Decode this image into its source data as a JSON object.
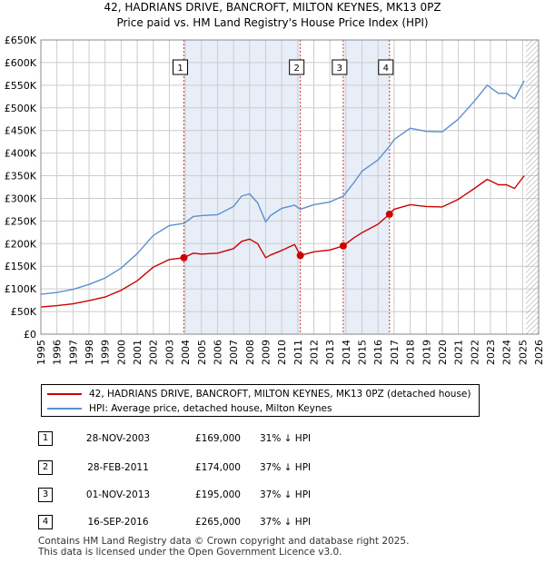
{
  "header": {
    "title": "42, HADRIANS DRIVE, BANCROFT, MILTON KEYNES, MK13 0PZ",
    "subtitle": "Price paid vs. HM Land Registry's House Price Index (HPI)"
  },
  "colors": {
    "red": "#cc0000",
    "blue": "#5b8fd0",
    "shade": "#e8eef8",
    "grid": "#cccccc"
  },
  "chart_data": {
    "type": "line",
    "title": "42, HADRIANS DRIVE, BANCROFT, MILTON KEYNES, MK13 0PZ",
    "subtitle": "Price paid vs. HM Land Registry's House Price Index (HPI)",
    "xlim": [
      1995,
      2026
    ],
    "ylim": [
      0,
      650000
    ],
    "y_ticks": [
      0,
      50000,
      100000,
      150000,
      200000,
      250000,
      300000,
      350000,
      400000,
      450000,
      500000,
      550000,
      600000,
      650000
    ],
    "y_tick_labels": [
      "£0",
      "£50K",
      "£100K",
      "£150K",
      "£200K",
      "£250K",
      "£300K",
      "£350K",
      "£400K",
      "£450K",
      "£500K",
      "£550K",
      "£600K",
      "£650K"
    ],
    "x_ticks": [
      1995,
      1996,
      1997,
      1998,
      1999,
      2000,
      2001,
      2002,
      2003,
      2004,
      2005,
      2006,
      2007,
      2008,
      2009,
      2010,
      2011,
      2012,
      2013,
      2014,
      2015,
      2016,
      2017,
      2018,
      2019,
      2020,
      2021,
      2022,
      2023,
      2024,
      2025,
      2026
    ],
    "shaded_ranges": [
      [
        2003.91,
        2011.16
      ],
      [
        2013.83,
        2016.71
      ]
    ],
    "forecast_start": 2025.2,
    "series": [
      {
        "name": "42, HADRIANS DRIVE, BANCROFT, MILTON KEYNES, MK13 0PZ (detached house)",
        "color": "#cc0000",
        "x": [
          1995,
          1996,
          1997,
          1998,
          1999,
          2000,
          2001,
          2002,
          2003,
          2003.91,
          2004.5,
          2005,
          2006,
          2007,
          2007.5,
          2008,
          2008.5,
          2009,
          2009.3,
          2010,
          2010.8,
          2011.16,
          2012,
          2013,
          2013.83,
          2014.5,
          2015,
          2016,
          2016.71,
          2017,
          2018,
          2019,
          2020,
          2021,
          2022,
          2022.8,
          2023.5,
          2024,
          2024.5,
          2025.1
        ],
        "y": [
          60000,
          63000,
          67000,
          74000,
          82000,
          97000,
          118000,
          148000,
          165000,
          169000,
          179000,
          177000,
          179000,
          189000,
          205000,
          210000,
          200000,
          169000,
          175000,
          185000,
          198000,
          174000,
          182000,
          186000,
          195000,
          213000,
          224000,
          243000,
          265000,
          276000,
          286000,
          282000,
          281000,
          298000,
          322000,
          342000,
          330000,
          330000,
          322000,
          350000
        ]
      },
      {
        "name": "HPI: Average price, detached house, Milton Keynes",
        "color": "#5b8fd0",
        "x": [
          1995,
          1996,
          1997,
          1998,
          1999,
          2000,
          2001,
          2002,
          2003,
          2003.91,
          2004.5,
          2005,
          2006,
          2007,
          2007.5,
          2008,
          2008.5,
          2009,
          2009.3,
          2010,
          2010.8,
          2011.16,
          2012,
          2013,
          2013.83,
          2014.5,
          2015,
          2016,
          2016.71,
          2017,
          2018,
          2019,
          2020,
          2021,
          2022,
          2022.8,
          2023.5,
          2024,
          2024.5,
          2025.1
        ],
        "y": [
          88000,
          92000,
          99000,
          110000,
          124000,
          146000,
          178000,
          218000,
          240000,
          245000,
          260000,
          262000,
          264000,
          282000,
          305000,
          310000,
          290000,
          248000,
          262000,
          278000,
          285000,
          276000,
          286000,
          292000,
          305000,
          335000,
          360000,
          385000,
          415000,
          430000,
          455000,
          448000,
          447000,
          475000,
          515000,
          550000,
          532000,
          532000,
          520000,
          560000
        ]
      }
    ],
    "sales": [
      {
        "label": "1",
        "x": 2003.91,
        "y": 169000
      },
      {
        "label": "2",
        "x": 2011.16,
        "y": 174000
      },
      {
        "label": "3",
        "x": 2013.83,
        "y": 195000
      },
      {
        "label": "4",
        "x": 2016.71,
        "y": 265000
      }
    ]
  },
  "legend": {
    "property_label": "42, HADRIANS DRIVE, BANCROFT, MILTON KEYNES, MK13 0PZ (detached house)",
    "hpi_label": "HPI: Average price, detached house, Milton Keynes"
  },
  "sales_table": [
    {
      "num": "1",
      "date": "28-NOV-2003",
      "price": "£169,000",
      "hpi": "31% ↓ HPI"
    },
    {
      "num": "2",
      "date": "28-FEB-2011",
      "price": "£174,000",
      "hpi": "37% ↓ HPI"
    },
    {
      "num": "3",
      "date": "01-NOV-2013",
      "price": "£195,000",
      "hpi": "37% ↓ HPI"
    },
    {
      "num": "4",
      "date": "16-SEP-2016",
      "price": "£265,000",
      "hpi": "37% ↓ HPI"
    }
  ],
  "footer": {
    "line1": "Contains HM Land Registry data © Crown copyright and database right 2025.",
    "line2": "This data is licensed under the Open Government Licence v3.0."
  }
}
